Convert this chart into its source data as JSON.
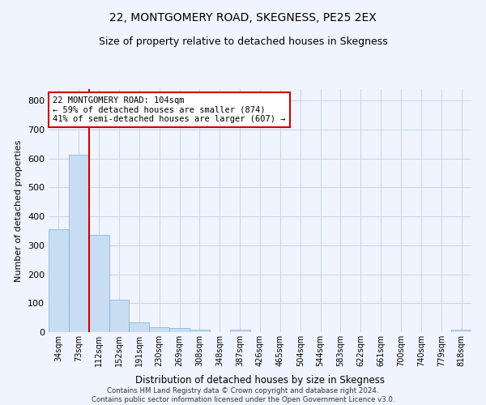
{
  "title": "22, MONTGOMERY ROAD, SKEGNESS, PE25 2EX",
  "subtitle": "Size of property relative to detached houses in Skegness",
  "xlabel": "Distribution of detached houses by size in Skegness",
  "ylabel": "Number of detached properties",
  "footer_line1": "Contains HM Land Registry data © Crown copyright and database right 2024.",
  "footer_line2": "Contains public sector information licensed under the Open Government Licence v3.0.",
  "categories": [
    "34sqm",
    "73sqm",
    "112sqm",
    "152sqm",
    "191sqm",
    "230sqm",
    "269sqm",
    "308sqm",
    "348sqm",
    "387sqm",
    "426sqm",
    "465sqm",
    "504sqm",
    "544sqm",
    "583sqm",
    "622sqm",
    "661sqm",
    "700sqm",
    "740sqm",
    "779sqm",
    "818sqm"
  ],
  "values": [
    355,
    612,
    335,
    113,
    35,
    18,
    14,
    8,
    0,
    8,
    0,
    0,
    0,
    0,
    0,
    0,
    0,
    0,
    0,
    0,
    8
  ],
  "bar_color": "#c9ddf2",
  "bar_edge_color": "#7bafd4",
  "red_line_index": 2,
  "annotation_text1": "22 MONTGOMERY ROAD: 104sqm",
  "annotation_text2": "← 59% of detached houses are smaller (874)",
  "annotation_text3": "41% of semi-detached houses are larger (607) →",
  "annotation_box_color": "#ffffff",
  "annotation_box_edge_color": "#cc0000",
  "red_line_color": "#cc0000",
  "ylim": [
    0,
    840
  ],
  "yticks": [
    0,
    100,
    200,
    300,
    400,
    500,
    600,
    700,
    800
  ],
  "grid_color": "#c8d4e8",
  "background_color": "#f0f4ff",
  "title_fontsize": 10,
  "subtitle_fontsize": 9,
  "bar_width": 1.0
}
